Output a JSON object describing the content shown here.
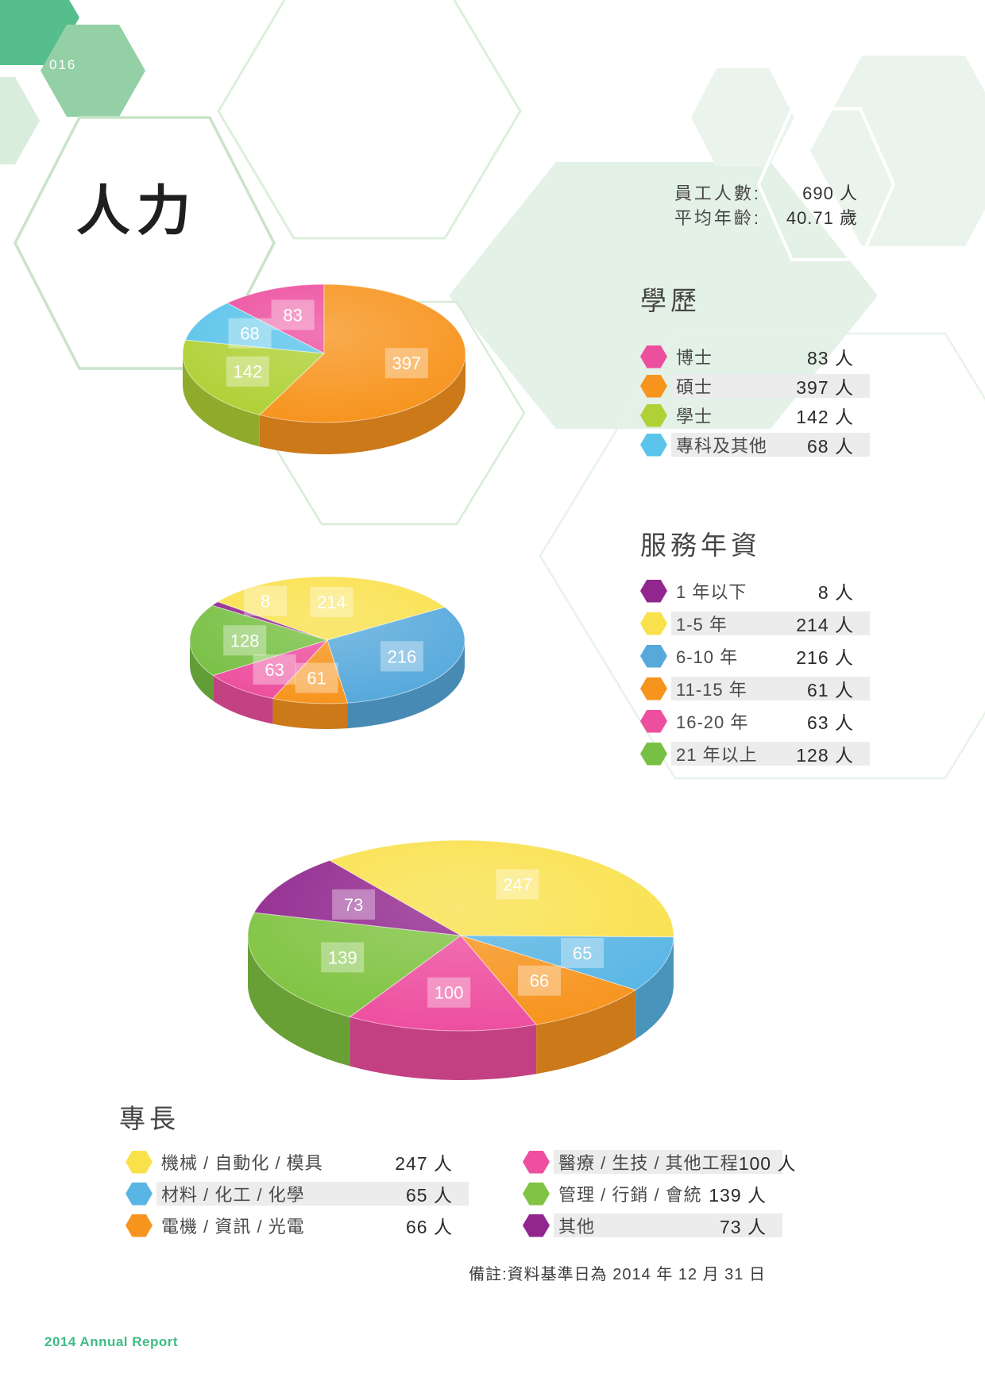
{
  "page": {
    "number": "016",
    "title": "人力",
    "note": "備註:資料基準日為 2014 年 12 月 31 日",
    "footer": "2014 Annual Report"
  },
  "header_stats": {
    "rows": [
      {
        "label": "員工人數:",
        "value": "690 人"
      },
      {
        "label": "平均年齡:",
        "value": "40.71 歲"
      }
    ]
  },
  "theme": {
    "accent_green": "#55BE8C",
    "pale_green": "#E3F1E7",
    "legend_band_gray": "#ECECEC"
  },
  "chart_data": [
    {
      "type": "pie",
      "title": "學歷",
      "unit": "人",
      "legend_position": "right",
      "start_deg": -43.3,
      "labels": [
        "博士",
        "碩士",
        "學士",
        "專科及其他"
      ],
      "values": [
        83,
        397,
        142,
        68
      ],
      "colors": [
        "#ED4F9F",
        "#F7941E",
        "#AFD136",
        "#5BC4EA"
      ]
    },
    {
      "type": "pie",
      "title": "服務年資",
      "unit": "人",
      "legend_position": "right",
      "start_deg": -57,
      "labels": [
        "1 年以下",
        "1-5 年",
        "6-10 年",
        "11-15 年",
        "16-20 年",
        "21 年以上"
      ],
      "values": [
        8,
        214,
        216,
        61,
        63,
        128
      ],
      "colors": [
        "#91278E",
        "#F9E14C",
        "#57A9DC",
        "#F7941E",
        "#ED4F9F",
        "#77C043"
      ]
    },
    {
      "type": "pie",
      "title": "專長",
      "unit": "人",
      "legend_position": "bottom",
      "start_deg": -38,
      "labels": [
        "機械 / 自動化 / 模具",
        "材料 / 化工 / 化學",
        "電機 / 資訊 / 光電",
        "醫療 / 生技 / 其他工程",
        "管理 / 行銷 / 會統",
        "其他"
      ],
      "values": [
        247,
        65,
        66,
        100,
        139,
        73
      ],
      "colors": [
        "#F9E14C",
        "#58B5E4",
        "#F7941E",
        "#EE4FA0",
        "#80C342",
        "#91278E"
      ]
    }
  ]
}
